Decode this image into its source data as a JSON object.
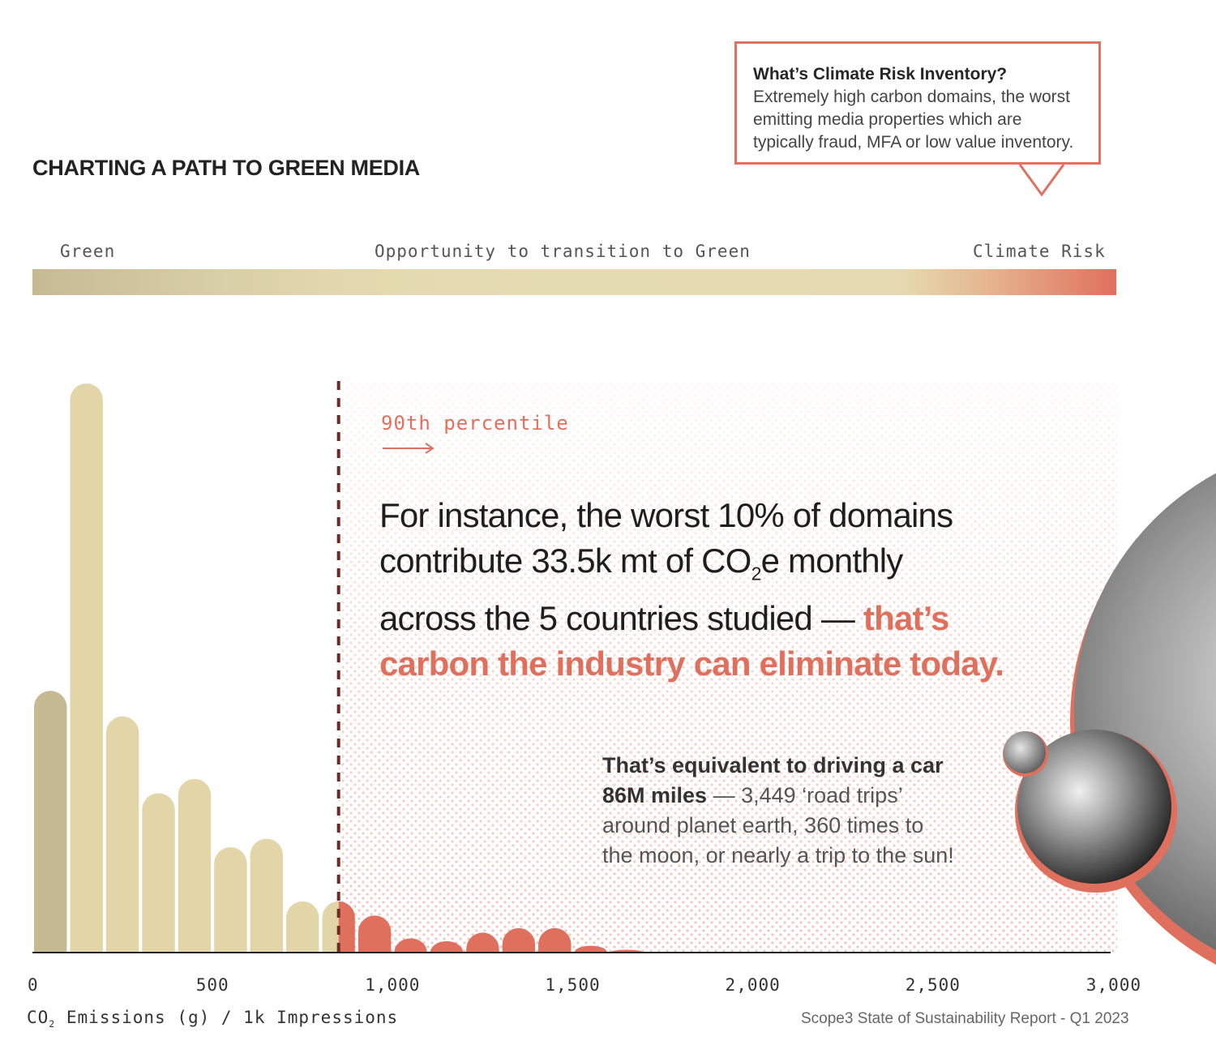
{
  "header": {
    "title": "CHARTING A PATH TO GREEN MEDIA"
  },
  "callout": {
    "title": "What’s Climate Risk Inventory?",
    "lines": [
      "Extremely high carbon domains, the worst",
      "emitting media properties which are",
      "typically fraud, MFA or low value inventory."
    ]
  },
  "scale": {
    "left": "Green",
    "middle": "Opportunity to transition to Green",
    "right": "Climate Risk"
  },
  "annotation": {
    "percentile": "90th percentile",
    "main_line1": "For instance, the worst 10% of domains",
    "main_line2_a": "contribute 33.5k mt of CO",
    "main_line2_sub": "2",
    "main_line2_b": "e monthly",
    "main_line3_a": "across the 5 countries studied — ",
    "main_line3_hl": "that’s",
    "main_line4_hl": "carbon the industry can eliminate today.",
    "side_bold_1": "That’s equivalent to driving a car",
    "side_bold_2": "86M miles",
    "side_rest_1": " — 3,449 ‘road trips’",
    "side_rest_2": "around planet earth, 360 times to",
    "side_rest_3": "the moon, or nearly a trip to the sun!"
  },
  "footer": {
    "source": "Scope3 State of Sustainability Report - Q1 2023"
  },
  "colors": {
    "green": "#c5ba93",
    "beige": "#e2d6a8",
    "risk": "#e0705e",
    "line": "#6b2a22"
  },
  "chart_data": {
    "type": "bar",
    "xlabel_a": "CO",
    "xlabel_sub": "2",
    "xlabel_b": " Emissions (g) / 1k Impressions",
    "ylabel": "",
    "xlim": [
      0,
      3000
    ],
    "ylim": [
      0,
      100
    ],
    "xticks": [
      "0",
      "500",
      "1,000",
      "1,500",
      "2,000",
      "2,500",
      "3,000"
    ],
    "xtick_values": [
      0,
      500,
      1000,
      1500,
      2000,
      2500,
      3000
    ],
    "bin_width": 100,
    "percentile_90": 850,
    "bins": [
      {
        "x": 50,
        "value": 46,
        "group": "green"
      },
      {
        "x": 150,
        "value": 100,
        "group": "beige"
      },
      {
        "x": 250,
        "value": 41.5,
        "group": "beige"
      },
      {
        "x": 350,
        "value": 28,
        "group": "beige"
      },
      {
        "x": 450,
        "value": 30.5,
        "group": "beige"
      },
      {
        "x": 550,
        "value": 18.5,
        "group": "beige"
      },
      {
        "x": 650,
        "value": 20,
        "group": "beige"
      },
      {
        "x": 750,
        "value": 9,
        "group": "beige"
      },
      {
        "x": 850,
        "value": 9,
        "group": "split"
      },
      {
        "x": 950,
        "value": 6.5,
        "group": "risk"
      },
      {
        "x": 1050,
        "value": 2.5,
        "group": "risk"
      },
      {
        "x": 1150,
        "value": 2,
        "group": "risk"
      },
      {
        "x": 1250,
        "value": 3.5,
        "group": "risk"
      },
      {
        "x": 1350,
        "value": 4.3,
        "group": "risk"
      },
      {
        "x": 1450,
        "value": 4.3,
        "group": "risk"
      },
      {
        "x": 1550,
        "value": 1.2,
        "group": "risk"
      },
      {
        "x": 1650,
        "value": 0.5,
        "group": "risk"
      }
    ]
  }
}
